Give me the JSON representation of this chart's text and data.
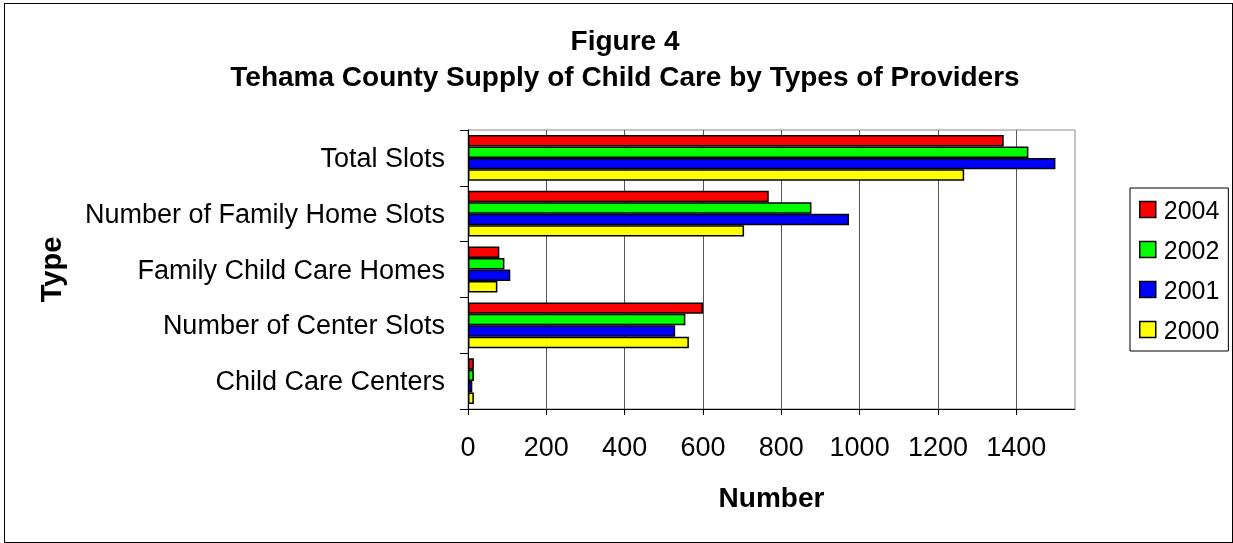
{
  "chart_data": {
    "type": "bar",
    "orientation": "horizontal",
    "title": "Figure 4",
    "subtitle": "Tehama County Supply of Child Care by Types of Providers",
    "xlabel": "Number",
    "ylabel": "Type",
    "categories": [
      "Total Slots",
      "Number of Family Home Slots",
      "Family Child Care Homes",
      "Number of Center Slots",
      "Child Care Centers"
    ],
    "series": [
      {
        "name": "2004",
        "color": "#ff0000",
        "values": [
          1368,
          768,
          80,
          600,
          15
        ]
      },
      {
        "name": "2002",
        "color": "#00ff00",
        "values": [
          1431,
          877,
          93,
          555,
          15
        ]
      },
      {
        "name": "2001",
        "color": "#0000ff",
        "values": [
          1500,
          973,
          108,
          529,
          11
        ]
      },
      {
        "name": "2000",
        "color": "#ffff00",
        "values": [
          1267,
          705,
          75,
          564,
          15
        ]
      }
    ],
    "xlim": [
      0,
      1550
    ],
    "xticks": [
      0,
      200,
      400,
      600,
      800,
      1000,
      1200,
      1400
    ],
    "grid": "x",
    "legend": "right"
  }
}
